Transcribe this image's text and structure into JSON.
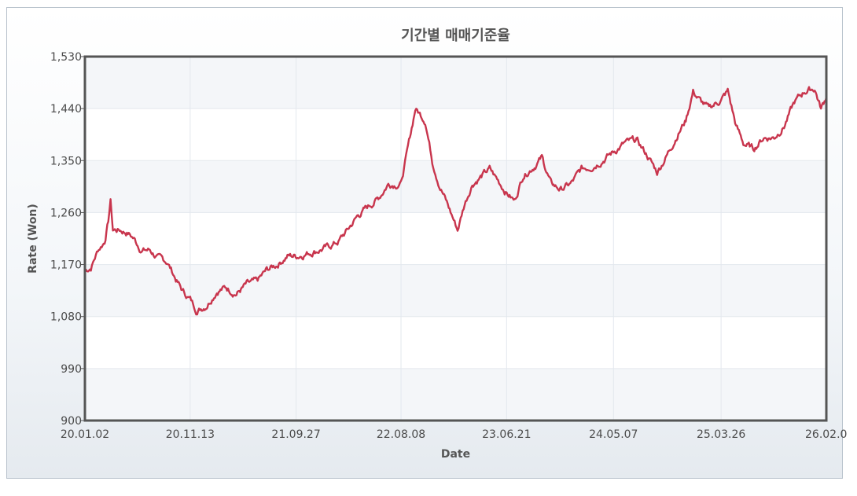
{
  "chart_data": {
    "type": "line",
    "title": "기간별 매매기준율",
    "xlabel": "Date",
    "ylabel": "Rate (Won)",
    "ylim": [
      900,
      1530
    ],
    "yticks": [
      "900",
      "990",
      "1,080",
      "1,170",
      "1,260",
      "1,350",
      "1,440",
      "1,530"
    ],
    "ytick_values": [
      900,
      990,
      1080,
      1170,
      1260,
      1350,
      1440,
      1530
    ],
    "xticks": [
      "20.01.02",
      "20.11.13",
      "21.09.27",
      "22.08.08",
      "23.06.21",
      "24.05.07",
      "25.03.26",
      "26.02.0"
    ],
    "xtick_values": [
      "2020-01-02",
      "2020-11-13",
      "2021-09-27",
      "2022-08-08",
      "2023-06-21",
      "2024-05-07",
      "2025-03-26",
      "2026-02-0"
    ],
    "grid": true,
    "line_color": "#c8354d",
    "series": [
      {
        "x": [
          "2020-01-02",
          "2020-01-20",
          "2020-02-10",
          "2020-03-01",
          "2020-03-12",
          "2020-03-19",
          "2020-03-26",
          "2020-04-15",
          "2020-05-10",
          "2020-05-28",
          "2020-06-20",
          "2020-07-15",
          "2020-08-10",
          "2020-09-05",
          "2020-10-01",
          "2020-10-20",
          "2020-11-13",
          "2020-12-04",
          "2021-01-01",
          "2021-02-01",
          "2021-03-01",
          "2021-04-01",
          "2021-05-01",
          "2021-06-01",
          "2021-07-01",
          "2021-08-01",
          "2021-09-01",
          "2021-10-01",
          "2021-11-01",
          "2021-12-01",
          "2022-01-01",
          "2022-02-01",
          "2022-03-01",
          "2022-04-01",
          "2022-05-01",
          "2022-06-01",
          "2022-07-01",
          "2022-08-08",
          "2022-09-01",
          "2022-09-20",
          "2022-10-20",
          "2022-11-10",
          "2022-12-01",
          "2023-01-01",
          "2023-01-25",
          "2023-02-15",
          "2023-03-10",
          "2023-04-01",
          "2023-05-01",
          "2023-06-21",
          "2023-07-15",
          "2023-08-10",
          "2023-09-10",
          "2023-10-05",
          "2023-11-01",
          "2023-12-01",
          "2024-01-01",
          "2024-02-01",
          "2024-03-01",
          "2024-04-01",
          "2024-05-07",
          "2024-06-10",
          "2024-07-15",
          "2024-08-15",
          "2024-09-15",
          "2024-10-15",
          "2024-11-15",
          "2024-12-10",
          "2025-01-01",
          "2025-01-20",
          "2025-02-15",
          "2025-03-26",
          "2025-04-15",
          "2025-05-10",
          "2025-06-01",
          "2025-07-01",
          "2025-08-01",
          "2025-09-01",
          "2025-10-01",
          "2025-11-01",
          "2025-12-01",
          "2026-01-01",
          "2026-01-20",
          "2026-02-05"
        ],
        "y": [
          1160,
          1165,
          1195,
          1210,
          1245,
          1280,
          1230,
          1230,
          1225,
          1215,
          1195,
          1195,
          1180,
          1175,
          1145,
          1125,
          1110,
          1090,
          1100,
          1125,
          1130,
          1120,
          1135,
          1140,
          1160,
          1170,
          1185,
          1185,
          1190,
          1195,
          1200,
          1210,
          1230,
          1255,
          1270,
          1285,
          1310,
          1310,
          1380,
          1440,
          1420,
          1350,
          1310,
          1265,
          1230,
          1275,
          1310,
          1320,
          1335,
          1295,
          1280,
          1325,
          1340,
          1355,
          1310,
          1300,
          1310,
          1335,
          1340,
          1350,
          1365,
          1380,
          1385,
          1360,
          1330,
          1360,
          1395,
          1420,
          1470,
          1455,
          1440,
          1455,
          1470,
          1410,
          1380,
          1370,
          1390,
          1390,
          1410,
          1450,
          1470,
          1475,
          1440,
          1460
        ]
      }
    ]
  }
}
